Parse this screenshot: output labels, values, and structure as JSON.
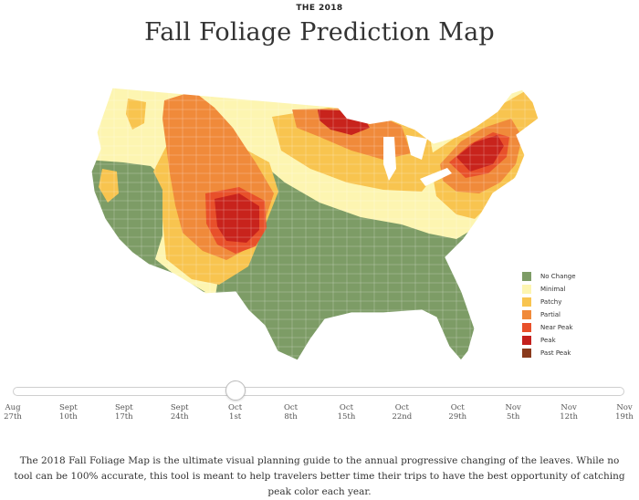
{
  "header": {
    "kicker": "THE 2018",
    "title": "Fall Foliage Prediction Map"
  },
  "map": {
    "region": "Contiguous United States",
    "regions": [
      {
        "name": "Pacific Northwest",
        "status": "Minimal",
        "color": "#fdf5b1"
      },
      {
        "name": "California & Nevada",
        "status": "No Change",
        "color": "#7d9c66"
      },
      {
        "name": "Northern Rockies",
        "status": "Partial",
        "color": "#f08a3a"
      },
      {
        "name": "Colorado Rockies",
        "status": "Peak",
        "color": "#d02b1f"
      },
      {
        "name": "Central Plains & South",
        "status": "No Change",
        "color": "#7d9c66"
      },
      {
        "name": "Upper Great Lakes",
        "status": "Peak",
        "color": "#d02b1f"
      },
      {
        "name": "New England",
        "status": "Peak",
        "color": "#d02b1f"
      },
      {
        "name": "Mid-Atlantic",
        "status": "Patchy",
        "color": "#f8c44f"
      }
    ]
  },
  "legend": [
    {
      "label": "No Change",
      "color": "#7d9c66"
    },
    {
      "label": "Minimal",
      "color": "#fdf5b1"
    },
    {
      "label": "Patchy",
      "color": "#f8c44f"
    },
    {
      "label": "Partial",
      "color": "#f08a3a"
    },
    {
      "label": "Near Peak",
      "color": "#e8502a"
    },
    {
      "label": "Peak",
      "color": "#c4201c"
    },
    {
      "label": "Past Peak",
      "color": "#8a3a1c"
    }
  ],
  "slider": {
    "selected_index": 4,
    "selected_label": "Oct 1st",
    "ticks": [
      {
        "month": "Aug",
        "day": "27th"
      },
      {
        "month": "Sept",
        "day": "10th"
      },
      {
        "month": "Sept",
        "day": "17th"
      },
      {
        "month": "Sept",
        "day": "24th"
      },
      {
        "month": "Oct",
        "day": "1st"
      },
      {
        "month": "Oct",
        "day": "8th"
      },
      {
        "month": "Oct",
        "day": "15th"
      },
      {
        "month": "Oct",
        "day": "22nd"
      },
      {
        "month": "Oct",
        "day": "29th"
      },
      {
        "month": "Nov",
        "day": "5th"
      },
      {
        "month": "Nov",
        "day": "12th"
      },
      {
        "month": "Nov",
        "day": "19th"
      }
    ]
  },
  "description": "The 2018 Fall Foliage Map is the ultimate visual planning guide to the annual progressive changing of the leaves. While no tool can be 100% accurate, this tool is meant to help travelers better time their trips to have the best opportunity of catching peak color each year."
}
